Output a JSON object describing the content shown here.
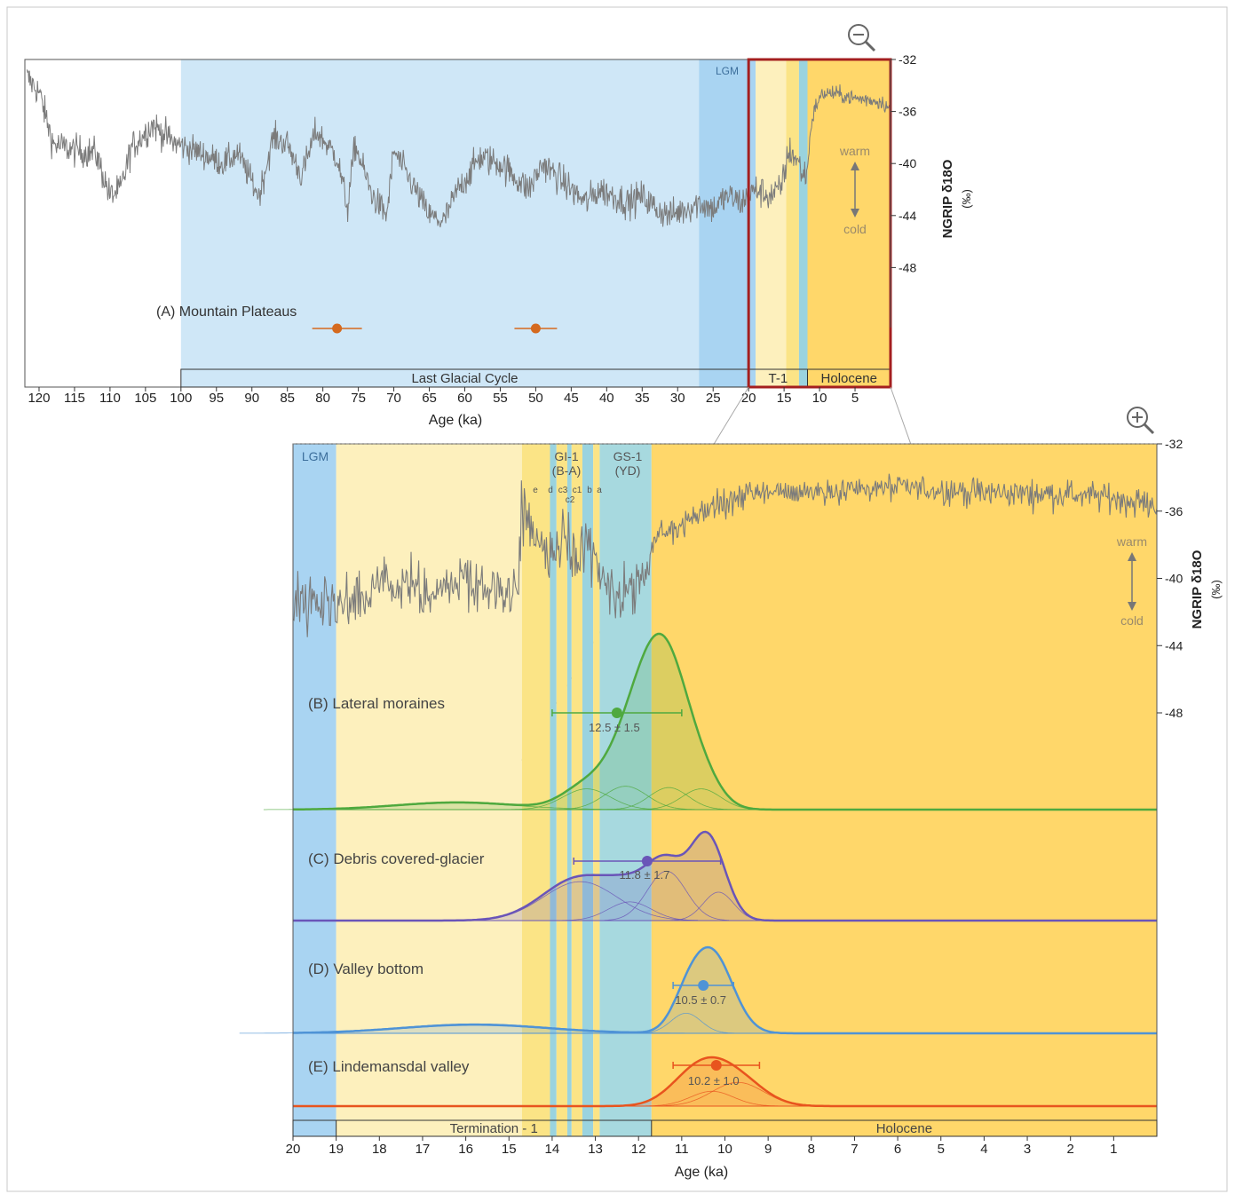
{
  "colors": {
    "glacial": "#cfe7f7",
    "lgm": "#a9d4f2",
    "pale_yellow": "#fdf0bd",
    "yellow": "#fbe486",
    "gi_band": "#9ad3df",
    "gs1": "#a7d9df",
    "holocene": "#ffd76a",
    "record": "#7b7b7b",
    "zoom_box": "#a41f1f",
    "b_series": "#4fa93f",
    "c_series": "#6a55b8",
    "d_series": "#4f93d6",
    "e_series": "#e8541e"
  },
  "icons": {
    "zoom_out": "zoom-out-icon",
    "zoom_in": "zoom-in-icon"
  },
  "chart_data": [
    {
      "type": "line",
      "panel": "top",
      "series": [
        {
          "name": "",
          "description_source": "NGRIP δ18O",
          "values": []
        }
      ],
      "x_tick_labels": [
        "120",
        "115",
        "110",
        "105",
        "100",
        "95",
        "90",
        "85",
        "80",
        "75",
        "70",
        "65",
        "60",
        "55",
        "50",
        "45",
        "40",
        "35",
        "30",
        "25",
        "20",
        "15",
        "10",
        "5"
      ],
      "xlim": [
        122,
        0
      ],
      "xlabel": "Age (ka)",
      "y_tick_labels": [
        "-32",
        "-36",
        "-40",
        "-44",
        "-48"
      ],
      "ylim": [
        -32,
        -50
      ],
      "ylabel": "NGRIP δ18O",
      "yunit": "(‰)",
      "annotations": {
        "warm": "warm",
        "cold": "cold",
        "lgm": "LGM",
        "panel_a": "(A) Mountain Plateaus"
      },
      "periods": [
        {
          "label": "Last Glacial Cycle",
          "from": 100,
          "to": 20
        },
        {
          "label": "T-1",
          "from": 20,
          "to": 11.7
        },
        {
          "label": "Holocene",
          "from": 11.7,
          "to": 0
        }
      ],
      "bands": [
        {
          "from": 100,
          "to": 27,
          "color": "glacial"
        },
        {
          "from": 27,
          "to": 19,
          "color": "lgm"
        },
        {
          "from": 19,
          "to": 14.7,
          "color": "pale_yellow"
        },
        {
          "from": 14.7,
          "to": 12.9,
          "color": "yellow"
        },
        {
          "from": 12.9,
          "to": 11.7,
          "color": "gi_band"
        },
        {
          "from": 11.7,
          "to": 0,
          "color": "holocene"
        }
      ],
      "zoom_window": [
        20,
        0
      ],
      "mountain_plateau_ages": [
        {
          "age": 78,
          "err": 3.5
        },
        {
          "age": 50,
          "err": 3
        }
      ]
    },
    {
      "type": "line",
      "panel": "bottom",
      "x_tick_labels": [
        "20",
        "19",
        "18",
        "17",
        "16",
        "15",
        "14",
        "13",
        "12",
        "11",
        "10",
        "9",
        "8",
        "7",
        "6",
        "5",
        "4",
        "3",
        "2",
        "1"
      ],
      "xlim": [
        20,
        0
      ],
      "xlabel": "Age (ka)",
      "y_tick_labels": [
        "-32",
        "-36",
        "-40",
        "-44",
        "-48"
      ],
      "ylim": [
        -32,
        -48
      ],
      "ylabel": "NGRIP δ18O",
      "yunit": "(‰)",
      "annotations": {
        "warm": "warm",
        "cold": "cold",
        "lgm": "LGM",
        "gi1": "GI-1",
        "gi1_sub": "(B-A)",
        "gs1": "GS-1",
        "gs1_sub": "(YD)",
        "gi1_e": "e",
        "gi1_d": "d",
        "gi1_c3": "c3",
        "gi1_c1": "c1",
        "gi1_b": "b",
        "gi1_a": "a",
        "gi1_c2": "c2"
      },
      "periods": [
        {
          "label": "Termination - 1",
          "from": 19,
          "to": 11.7
        },
        {
          "label": "Holocene",
          "from": 11.7,
          "to": 0
        }
      ],
      "bands": [
        {
          "from": 20,
          "to": 19,
          "color": "lgm"
        },
        {
          "from": 19,
          "to": 14.7,
          "color": "pale_yellow"
        },
        {
          "from": 14.7,
          "to": 14.05,
          "color": "yellow"
        },
        {
          "from": 14.05,
          "to": 13.9,
          "color": "gi_band"
        },
        {
          "from": 13.9,
          "to": 13.65,
          "color": "yellow"
        },
        {
          "from": 13.65,
          "to": 13.55,
          "color": "gi_band"
        },
        {
          "from": 13.55,
          "to": 13.3,
          "color": "yellow"
        },
        {
          "from": 13.3,
          "to": 13.05,
          "color": "gi_band"
        },
        {
          "from": 13.05,
          "to": 12.9,
          "color": "yellow"
        },
        {
          "from": 12.9,
          "to": 11.7,
          "color": "gs1"
        },
        {
          "from": 11.7,
          "to": 0,
          "color": "holocene"
        }
      ],
      "age_distributions": [
        {
          "label": "(B) Lateral moraines",
          "mean": 12.5,
          "err": 1.5,
          "text": "12.5 ± 1.5",
          "color": "b_series",
          "peaks": [
            {
              "mu": 11.55,
              "sigma": 0.62,
              "amp": 1.0
            },
            {
              "mu": 13.2,
              "sigma": 0.55,
              "amp": 0.16
            },
            {
              "mu": 12.3,
              "sigma": 0.5,
              "amp": 0.18
            },
            {
              "mu": 11.3,
              "sigma": 0.45,
              "amp": 0.17
            },
            {
              "mu": 10.55,
              "sigma": 0.45,
              "amp": 0.16
            },
            {
              "mu": 16.2,
              "sigma": 1.4,
              "amp": 0.05
            }
          ]
        },
        {
          "label": "(C) Debris covered-glacier",
          "mean": 11.8,
          "err": 1.7,
          "text": "11.8 ± 1.7",
          "color": "c_series",
          "peaks": [
            {
              "mu": 10.5,
              "sigma": 0.35,
              "amp": 0.72
            },
            {
              "mu": 11.35,
              "sigma": 0.45,
              "amp": 0.66
            },
            {
              "mu": 13.35,
              "sigma": 0.85,
              "amp": 0.52
            },
            {
              "mu": 12.2,
              "sigma": 0.5,
              "amp": 0.25
            },
            {
              "mu": 10.15,
              "sigma": 0.35,
              "amp": 0.38
            }
          ]
        },
        {
          "label": "(D) Valley bottom",
          "mean": 10.5,
          "err": 0.7,
          "text": "10.5 ± 0.7",
          "color": "d_series",
          "peaks": [
            {
              "mu": 10.3,
              "sigma": 0.48,
              "amp": 1.0
            },
            {
              "mu": 10.9,
              "sigma": 0.35,
              "amp": 0.28
            },
            {
              "mu": 15.8,
              "sigma": 1.7,
              "amp": 0.11
            }
          ]
        },
        {
          "label": "(E) Lindemansdal valley",
          "mean": 10.2,
          "err": 1.0,
          "text": "10.2 ± 1.0",
          "color": "e_series",
          "peaks": [
            {
              "mu": 10.8,
              "sigma": 0.55,
              "amp": 0.75
            },
            {
              "mu": 9.7,
              "sigma": 0.6,
              "amp": 0.8
            },
            {
              "mu": 10.3,
              "sigma": 0.5,
              "amp": 0.5
            }
          ]
        }
      ]
    }
  ]
}
